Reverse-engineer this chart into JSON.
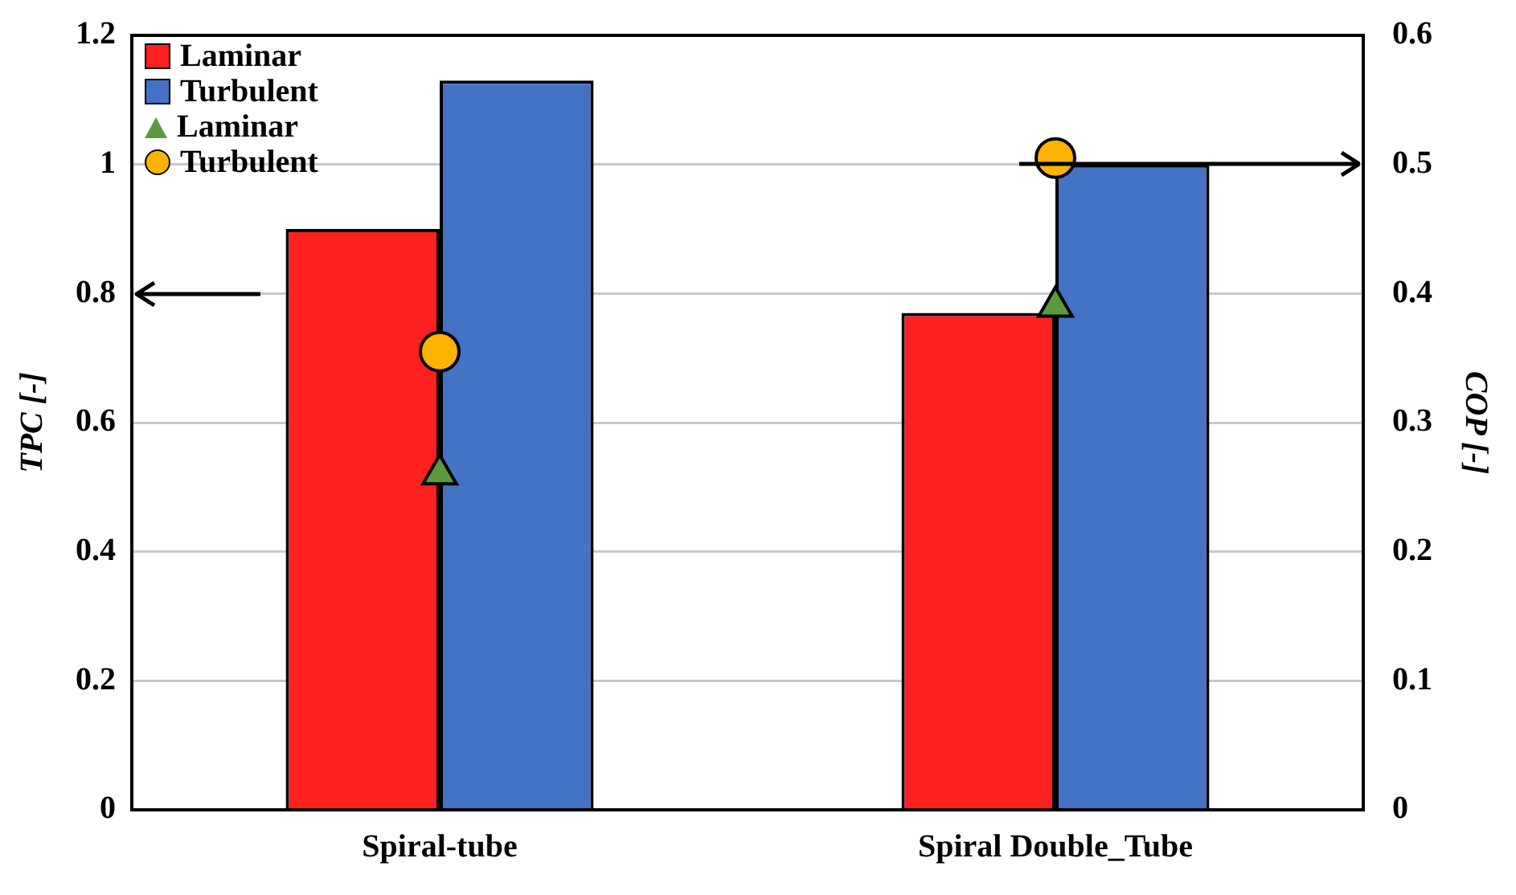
{
  "chart_data": {
    "type": "bar",
    "categories": [
      "Spiral-tube",
      "Spiral Double_Tube"
    ],
    "ylabel": "TPC [-]",
    "y2label": "COP [-]",
    "series": [
      {
        "name": "Laminar",
        "color": "#ff2020",
        "values": [
          0.9,
          0.77
        ]
      },
      {
        "name": "Turbulent",
        "color": "#4472c4",
        "values": [
          1.13,
          1.0
        ]
      },
      {
        "name": "Laminar",
        "type": "scatter",
        "axis": "y2",
        "marker": "triangle",
        "color": "#5b9a3c",
        "x": [
          "Spiral-tube",
          "Spiral Double_Tube"
        ],
        "values": [
          0.26,
          0.39
        ]
      },
      {
        "name": "Turbulent",
        "type": "scatter",
        "axis": "y2",
        "marker": "circle",
        "color": "#ffb300",
        "x": [
          "Spiral-tube",
          "Spiral Double_Tube"
        ],
        "values": [
          0.355,
          0.505
        ]
      }
    ],
    "ylim": [
      0,
      1.2
    ],
    "yticks": [
      0,
      0.2,
      0.4,
      0.6,
      0.8,
      1,
      1.2
    ],
    "y2lim": [
      0,
      0.6
    ],
    "y2ticks": [
      0,
      0.1,
      0.2,
      0.3,
      0.4,
      0.5,
      0.6
    ],
    "grid": "y",
    "legend": "top left"
  }
}
